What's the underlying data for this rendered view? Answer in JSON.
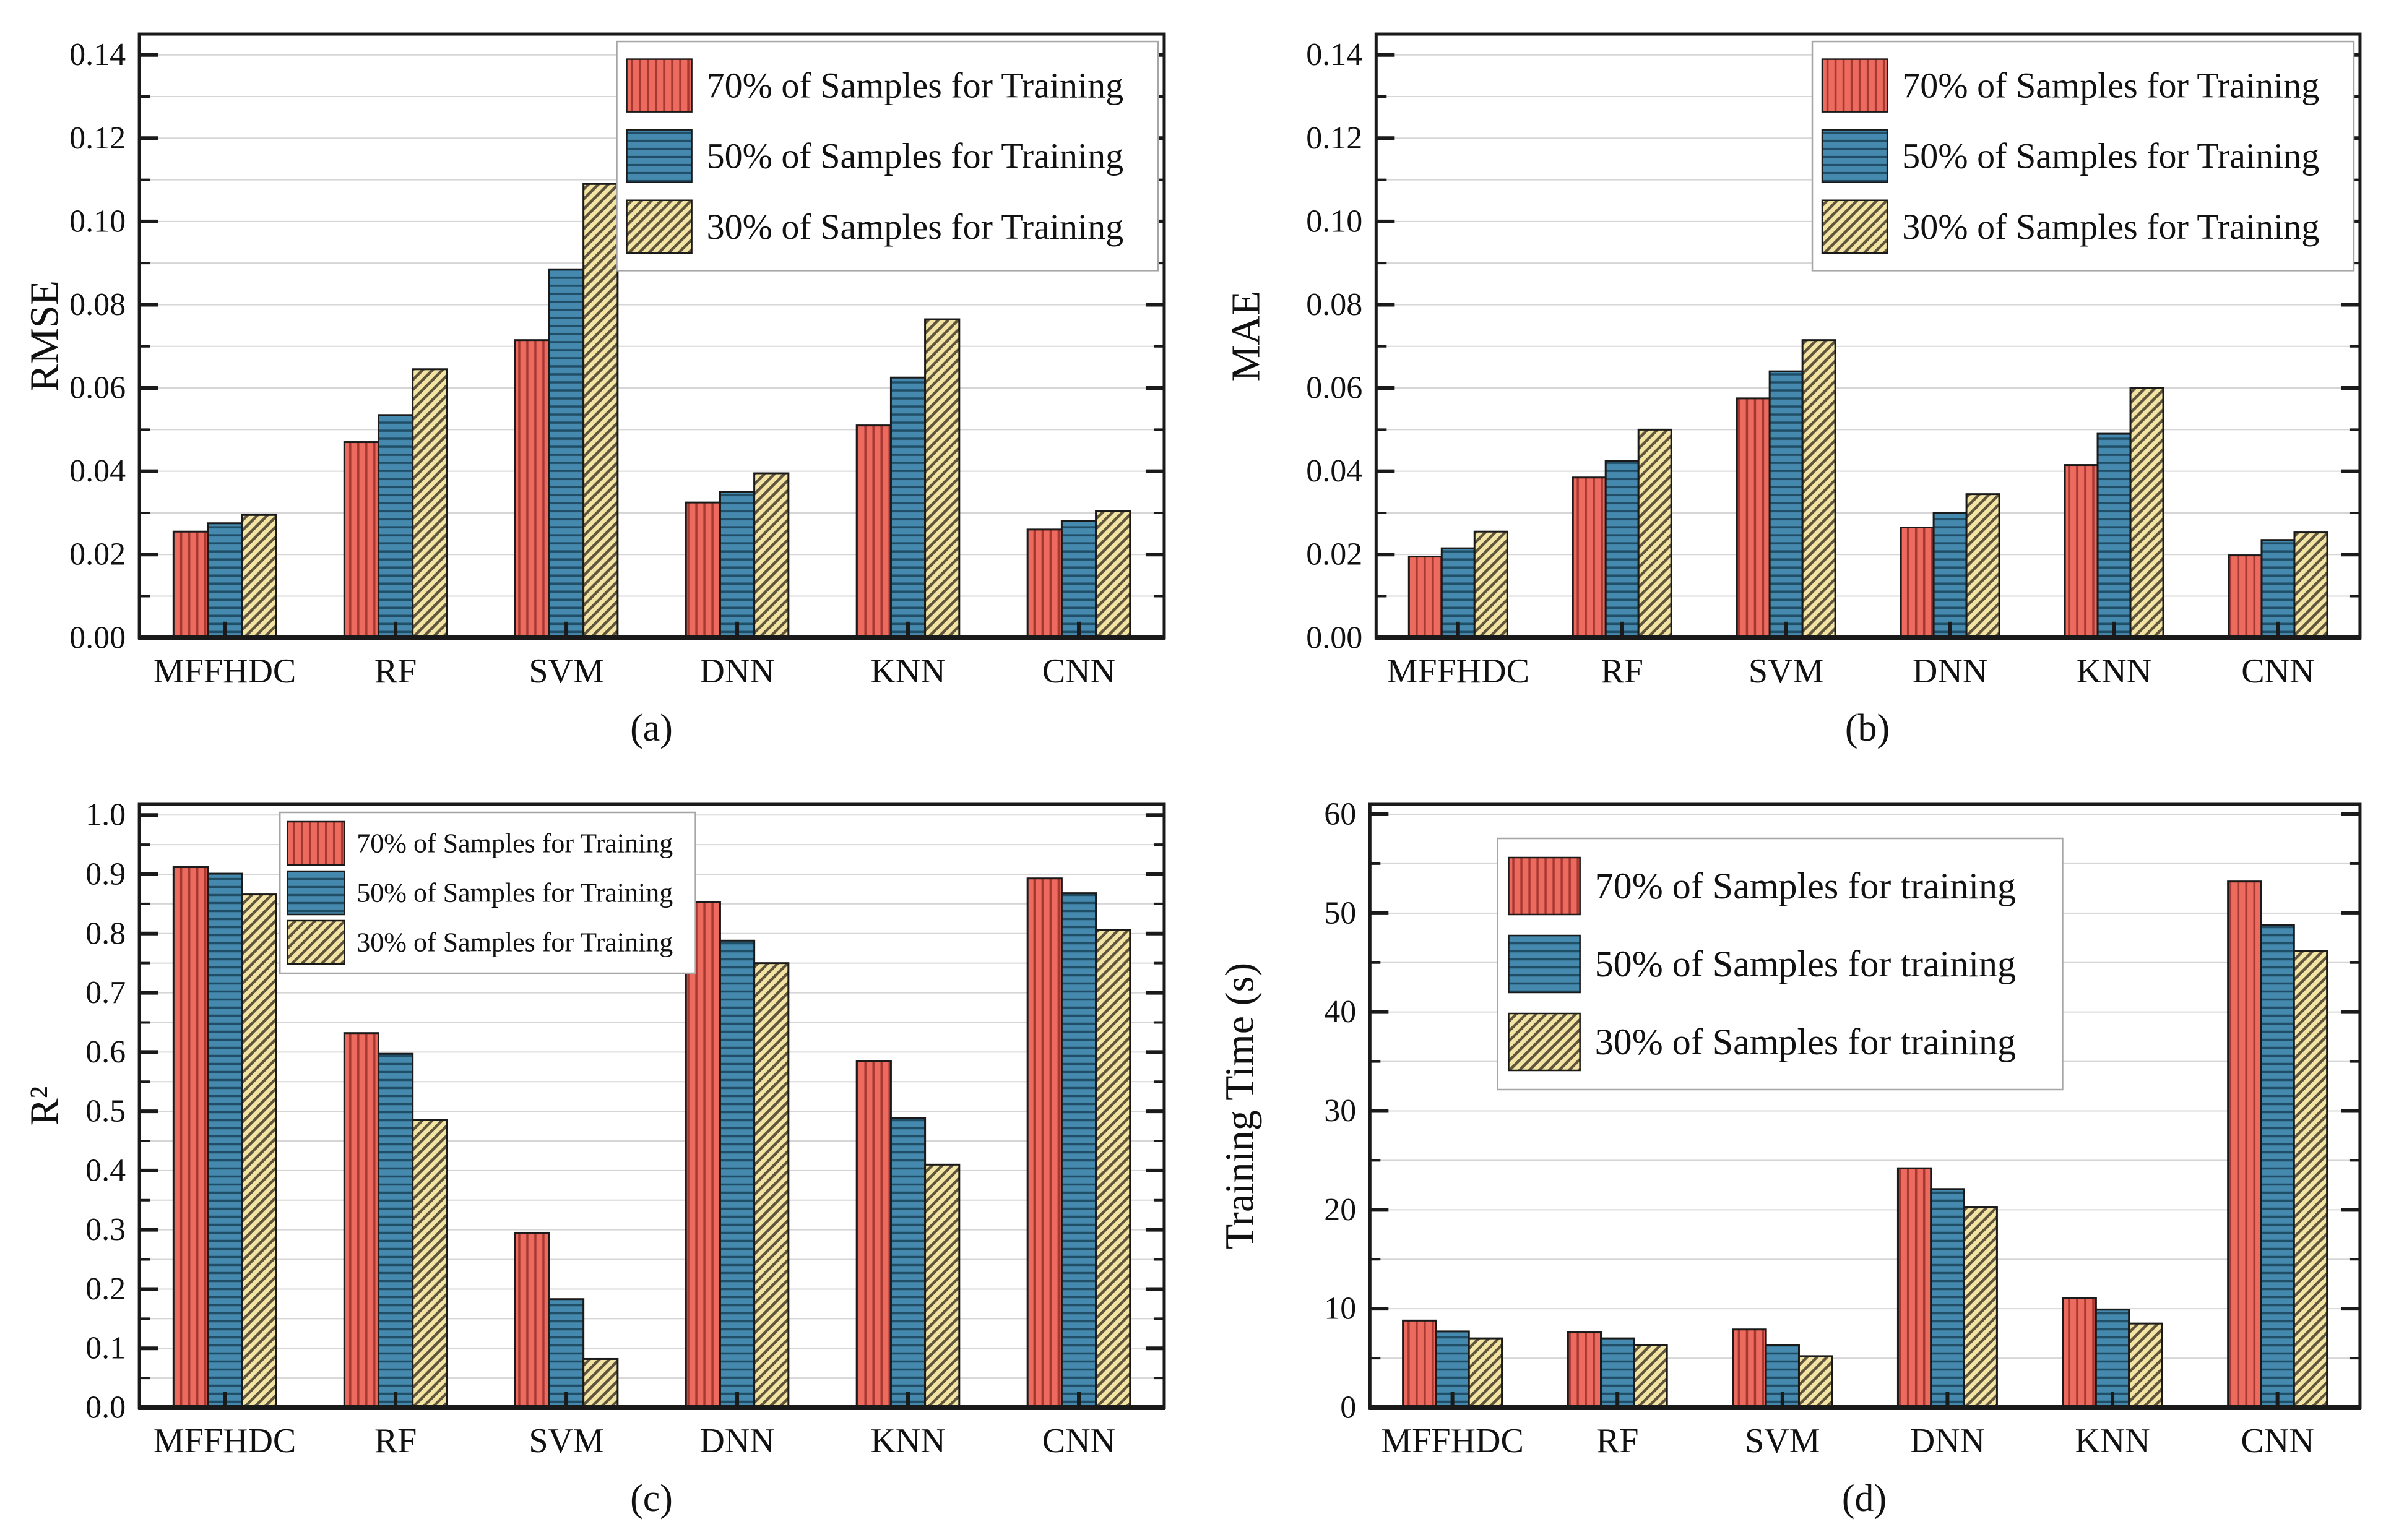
{
  "figure": {
    "background": "#ffffff",
    "text_color": "#111111",
    "gridline_color": "#d6d6d6",
    "frame_color": "#1a1a1a",
    "legend_border_color": "#a6a6a6",
    "legend_background": "#ffffff"
  },
  "series_styles": [
    {
      "key": "70",
      "pattern": "vertical",
      "fill": "#EC6A5E",
      "hatch": "#A63832"
    },
    {
      "key": "50",
      "pattern": "horizontal",
      "fill": "#4689AE",
      "hatch": "#1F4E66"
    },
    {
      "key": "30",
      "pattern": "diagonal",
      "fill": "#F3E4A4",
      "hatch": "#5E553C"
    }
  ],
  "categories": [
    "MFFHDC",
    "RF",
    "SVM",
    "DNN",
    "KNN",
    "CNN"
  ],
  "chart_data": [
    {
      "id": "a",
      "type": "bar",
      "caption": "(a)",
      "ylabel": "RMSE",
      "xlabel": "",
      "ylim": [
        0,
        0.145
      ],
      "ytick_step": 0.02,
      "grid_step": 0.01,
      "tick_decimals": 2,
      "grid": true,
      "legend_position": "top-right",
      "categories": [
        "MFFHDC",
        "RF",
        "SVM",
        "DNN",
        "KNN",
        "CNN"
      ],
      "series": [
        {
          "name": "70% of Samples for Training",
          "values": [
            0.0255,
            0.047,
            0.0715,
            0.0325,
            0.051,
            0.026
          ]
        },
        {
          "name": "50% of Samples for Training",
          "values": [
            0.0275,
            0.0535,
            0.0885,
            0.035,
            0.0625,
            0.028
          ]
        },
        {
          "name": "30% of Samples for Training",
          "values": [
            0.0295,
            0.0645,
            0.109,
            0.0395,
            0.0765,
            0.0305
          ]
        }
      ]
    },
    {
      "id": "b",
      "type": "bar",
      "caption": "(b)",
      "ylabel": "MAE",
      "xlabel": "",
      "ylim": [
        0,
        0.145
      ],
      "ytick_step": 0.02,
      "grid_step": 0.01,
      "tick_decimals": 2,
      "grid": true,
      "legend_position": "top-right",
      "categories": [
        "MFFHDC",
        "RF",
        "SVM",
        "DNN",
        "KNN",
        "CNN"
      ],
      "series": [
        {
          "name": "70% of Samples for Training",
          "values": [
            0.0195,
            0.0385,
            0.0575,
            0.0265,
            0.0415,
            0.0198
          ]
        },
        {
          "name": "50% of Samples for Training",
          "values": [
            0.0215,
            0.0425,
            0.064,
            0.03,
            0.049,
            0.0235
          ]
        },
        {
          "name": "30% of Samples for Training",
          "values": [
            0.0255,
            0.05,
            0.0715,
            0.0345,
            0.06,
            0.0253
          ]
        }
      ]
    },
    {
      "id": "c",
      "type": "bar",
      "caption": "(c)",
      "ylabel": "R²",
      "xlabel": "",
      "ylim": [
        0,
        1.018
      ],
      "ytick_step": 0.1,
      "grid_step": 0.05,
      "tick_decimals": 1,
      "grid": true,
      "legend_position": "top-left",
      "categories": [
        "MFFHDC",
        "RF",
        "SVM",
        "DNN",
        "KNN",
        "CNN"
      ],
      "series": [
        {
          "name": "70% of Samples for Training",
          "values": [
            0.912,
            0.632,
            0.295,
            0.853,
            0.585,
            0.893
          ]
        },
        {
          "name": "50% of Samples for Training",
          "values": [
            0.901,
            0.597,
            0.183,
            0.788,
            0.489,
            0.868
          ]
        },
        {
          "name": "30% of Samples for Training",
          "values": [
            0.866,
            0.486,
            0.082,
            0.75,
            0.41,
            0.806
          ]
        }
      ]
    },
    {
      "id": "d",
      "type": "bar",
      "caption": "(d)",
      "ylabel": "Training Time (s)",
      "xlabel": "",
      "ylim": [
        0,
        61
      ],
      "ytick_step": 10,
      "grid_step": 5,
      "tick_decimals": 0,
      "grid": true,
      "legend_position": "top-center",
      "categories": [
        "MFFHDC",
        "RF",
        "SVM",
        "DNN",
        "KNN",
        "CNN"
      ],
      "series": [
        {
          "name": "70% of Samples for training",
          "values": [
            8.8,
            7.6,
            7.9,
            24.2,
            11.1,
            53.2
          ]
        },
        {
          "name": "50% of Samples for training",
          "values": [
            7.7,
            7.0,
            6.3,
            22.1,
            9.9,
            48.8
          ]
        },
        {
          "name": "30% of Samples for training",
          "values": [
            7.0,
            6.3,
            5.2,
            20.3,
            8.5,
            46.2
          ]
        }
      ]
    }
  ]
}
